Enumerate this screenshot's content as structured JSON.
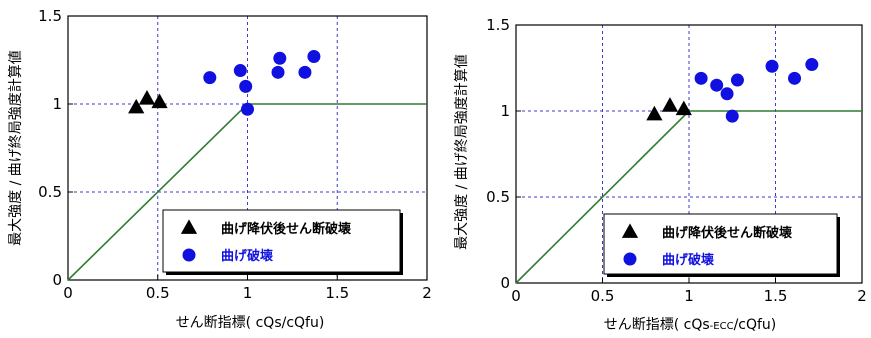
{
  "chart_data": [
    {
      "type": "scatter",
      "xlabel": "せん断指標( cQs/cQfu)",
      "xlabel_parts": [
        "せん断指標( cQs/cQfu)"
      ],
      "ylabel": "最大強度 / 曲げ終局強度計算値",
      "xlim": [
        0,
        2
      ],
      "ylim": [
        0,
        1.5
      ],
      "xticks": [
        "0",
        "0.5",
        "1",
        "1.5",
        "2"
      ],
      "yticks": [
        "0",
        "0.5",
        "1",
        "1.5"
      ],
      "grid": true,
      "legend_position": "bottom-right",
      "series": [
        {
          "name": "曲げ降伏後せん断破壊",
          "marker": "triangle",
          "color": "#000000",
          "points": [
            [
              0.38,
              0.98
            ],
            [
              0.44,
              1.03
            ],
            [
              0.51,
              1.01
            ]
          ]
        },
        {
          "name": "曲げ破壊",
          "marker": "circle",
          "color": "#1010e0",
          "points": [
            [
              0.79,
              1.15
            ],
            [
              0.96,
              1.19
            ],
            [
              0.99,
              1.1
            ],
            [
              1.0,
              0.97
            ],
            [
              1.17,
              1.18
            ],
            [
              1.18,
              1.26
            ],
            [
              1.32,
              1.18
            ],
            [
              1.37,
              1.27
            ]
          ]
        }
      ],
      "reference_line": {
        "color": "#2e7d32",
        "points": [
          [
            0,
            0
          ],
          [
            1,
            1
          ],
          [
            2,
            1
          ]
        ]
      }
    },
    {
      "type": "scatter",
      "xlabel": "せん断指標( cQs-ECC/cQfu)",
      "xlabel_parts": [
        "せん断指標( cQs",
        "-ECC",
        "/cQfu)"
      ],
      "ylabel": "最大強度 / 曲げ終局強度計算値",
      "xlim": [
        0,
        2
      ],
      "ylim": [
        0,
        1.5
      ],
      "xticks": [
        "0",
        "0.5",
        "1",
        "1.5",
        "2"
      ],
      "yticks": [
        "0",
        "0.5",
        "1",
        "1.5"
      ],
      "grid": true,
      "legend_position": "bottom-right",
      "series": [
        {
          "name": "曲げ降伏後せん断破壊",
          "marker": "triangle",
          "color": "#000000",
          "points": [
            [
              0.8,
              0.98
            ],
            [
              0.89,
              1.03
            ],
            [
              0.97,
              1.01
            ]
          ]
        },
        {
          "name": "曲げ破壊",
          "marker": "circle",
          "color": "#1010e0",
          "points": [
            [
              1.07,
              1.19
            ],
            [
              1.16,
              1.15
            ],
            [
              1.22,
              1.1
            ],
            [
              1.25,
              0.97
            ],
            [
              1.28,
              1.18
            ],
            [
              1.48,
              1.26
            ],
            [
              1.61,
              1.19
            ],
            [
              1.71,
              1.27
            ]
          ]
        }
      ],
      "reference_line": {
        "color": "#2e7d32",
        "points": [
          [
            0,
            0
          ],
          [
            1,
            1
          ],
          [
            2,
            1
          ]
        ]
      }
    }
  ]
}
